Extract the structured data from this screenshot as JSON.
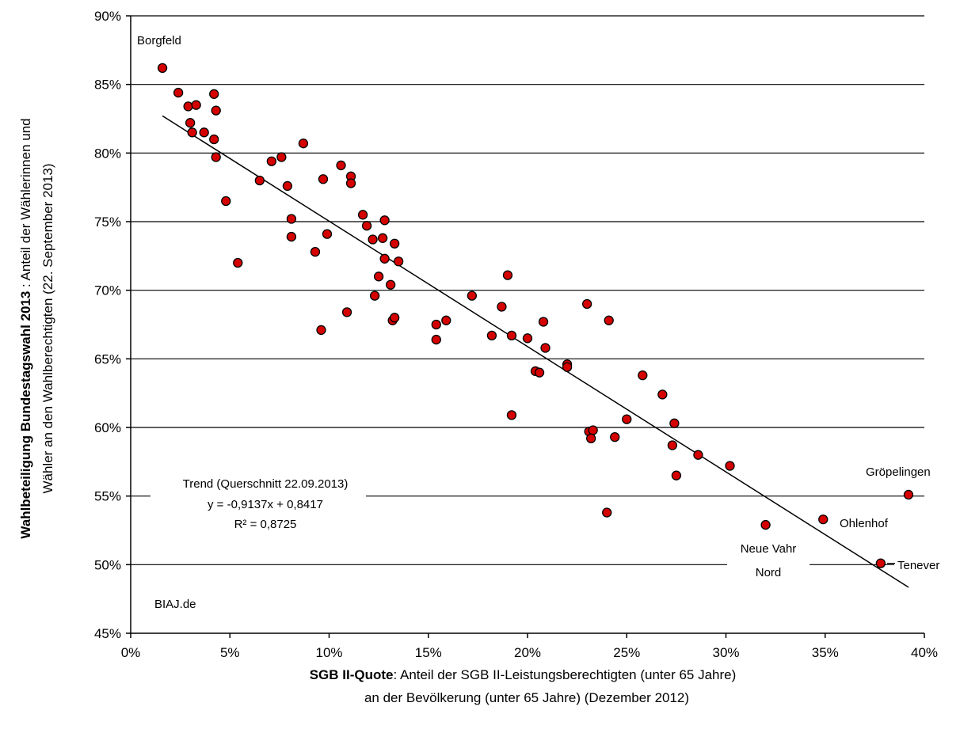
{
  "chart_data": {
    "type": "scatter",
    "xlim": [
      0,
      0.4
    ],
    "ylim": [
      0.45,
      0.9
    ],
    "x_ticks": [
      0,
      0.05,
      0.1,
      0.15,
      0.2,
      0.25,
      0.3,
      0.35,
      0.4
    ],
    "x_tick_labels": [
      "0%",
      "5%",
      "10%",
      "15%",
      "20%",
      "25%",
      "30%",
      "35%",
      "40%"
    ],
    "y_ticks": [
      0.45,
      0.5,
      0.55,
      0.6,
      0.65,
      0.7,
      0.75,
      0.8,
      0.85,
      0.9
    ],
    "y_tick_labels": [
      "45%",
      "50%",
      "55%",
      "60%",
      "65%",
      "70%",
      "75%",
      "80%",
      "85%",
      "90%"
    ],
    "grid": "horizontal",
    "xlabel": {
      "bold": "SGB II-Quote",
      "rest": ": Anteil der SGB II-Leistungsberechtigten (unter 65 Jahre)",
      "line2": "an der Bevölkerung (unter 65 Jahre) (Dezember 2012)"
    },
    "ylabel": {
      "bold": "Wahlbeteiligung Bundestagswahl 2013",
      "rest": " : Anteil der Wählerinnen und",
      "line2": "Wähler an den Wahlberechtigten (22. September 2013)"
    },
    "trend": {
      "slope": -0.9137,
      "intercept": 0.8417,
      "x_range": [
        0.016,
        0.392
      ],
      "label_lines": [
        "Trend (Querschnitt 22.09.2013)",
        "y = -0,9137x + 0,8417",
        "R² = 0,8725"
      ]
    },
    "source": "BIAJ.de",
    "labels": [
      {
        "text": "Borgfeld",
        "x": 0.016,
        "y": 0.862
      },
      {
        "text": "Gröpelingen",
        "x": 0.392,
        "y": 0.551
      },
      {
        "text": "Ohlenhof",
        "x": 0.349,
        "y": 0.533
      },
      {
        "text": "Neue Vahr",
        "x": 0.32,
        "y": 0.529
      },
      {
        "text": "Nord",
        "x": 0.32,
        "y": 0.529
      },
      {
        "text": "Tenever",
        "x": 0.378,
        "y": 0.501
      }
    ],
    "points": [
      {
        "x": 0.016,
        "y": 0.862
      },
      {
        "x": 0.024,
        "y": 0.844
      },
      {
        "x": 0.029,
        "y": 0.834
      },
      {
        "x": 0.033,
        "y": 0.835
      },
      {
        "x": 0.03,
        "y": 0.822
      },
      {
        "x": 0.031,
        "y": 0.815
      },
      {
        "x": 0.037,
        "y": 0.815
      },
      {
        "x": 0.042,
        "y": 0.843
      },
      {
        "x": 0.043,
        "y": 0.831
      },
      {
        "x": 0.042,
        "y": 0.81
      },
      {
        "x": 0.043,
        "y": 0.797
      },
      {
        "x": 0.048,
        "y": 0.765
      },
      {
        "x": 0.054,
        "y": 0.72
      },
      {
        "x": 0.065,
        "y": 0.78
      },
      {
        "x": 0.071,
        "y": 0.794
      },
      {
        "x": 0.076,
        "y": 0.797
      },
      {
        "x": 0.079,
        "y": 0.776
      },
      {
        "x": 0.081,
        "y": 0.752
      },
      {
        "x": 0.081,
        "y": 0.739
      },
      {
        "x": 0.087,
        "y": 0.807
      },
      {
        "x": 0.093,
        "y": 0.728
      },
      {
        "x": 0.097,
        "y": 0.781
      },
      {
        "x": 0.099,
        "y": 0.741
      },
      {
        "x": 0.096,
        "y": 0.671
      },
      {
        "x": 0.106,
        "y": 0.791
      },
      {
        "x": 0.111,
        "y": 0.783
      },
      {
        "x": 0.111,
        "y": 0.778
      },
      {
        "x": 0.109,
        "y": 0.684
      },
      {
        "x": 0.117,
        "y": 0.755
      },
      {
        "x": 0.119,
        "y": 0.747
      },
      {
        "x": 0.122,
        "y": 0.737
      },
      {
        "x": 0.127,
        "y": 0.738
      },
      {
        "x": 0.128,
        "y": 0.751
      },
      {
        "x": 0.128,
        "y": 0.723
      },
      {
        "x": 0.125,
        "y": 0.71
      },
      {
        "x": 0.123,
        "y": 0.696
      },
      {
        "x": 0.131,
        "y": 0.704
      },
      {
        "x": 0.133,
        "y": 0.734
      },
      {
        "x": 0.135,
        "y": 0.721
      },
      {
        "x": 0.132,
        "y": 0.678
      },
      {
        "x": 0.133,
        "y": 0.68
      },
      {
        "x": 0.154,
        "y": 0.675
      },
      {
        "x": 0.154,
        "y": 0.664
      },
      {
        "x": 0.159,
        "y": 0.678
      },
      {
        "x": 0.172,
        "y": 0.696
      },
      {
        "x": 0.182,
        "y": 0.667
      },
      {
        "x": 0.187,
        "y": 0.688
      },
      {
        "x": 0.19,
        "y": 0.711
      },
      {
        "x": 0.192,
        "y": 0.667
      },
      {
        "x": 0.192,
        "y": 0.609
      },
      {
        "x": 0.2,
        "y": 0.665
      },
      {
        "x": 0.204,
        "y": 0.641
      },
      {
        "x": 0.206,
        "y": 0.64
      },
      {
        "x": 0.208,
        "y": 0.677
      },
      {
        "x": 0.209,
        "y": 0.658
      },
      {
        "x": 0.22,
        "y": 0.646
      },
      {
        "x": 0.22,
        "y": 0.644
      },
      {
        "x": 0.23,
        "y": 0.69
      },
      {
        "x": 0.231,
        "y": 0.597
      },
      {
        "x": 0.233,
        "y": 0.598
      },
      {
        "x": 0.232,
        "y": 0.592
      },
      {
        "x": 0.241,
        "y": 0.678
      },
      {
        "x": 0.24,
        "y": 0.538
      },
      {
        "x": 0.244,
        "y": 0.593
      },
      {
        "x": 0.25,
        "y": 0.606
      },
      {
        "x": 0.258,
        "y": 0.638
      },
      {
        "x": 0.268,
        "y": 0.624
      },
      {
        "x": 0.274,
        "y": 0.603
      },
      {
        "x": 0.273,
        "y": 0.587
      },
      {
        "x": 0.275,
        "y": 0.565
      },
      {
        "x": 0.286,
        "y": 0.58
      },
      {
        "x": 0.302,
        "y": 0.572
      },
      {
        "x": 0.32,
        "y": 0.529
      },
      {
        "x": 0.349,
        "y": 0.533
      },
      {
        "x": 0.378,
        "y": 0.501
      },
      {
        "x": 0.392,
        "y": 0.551
      }
    ]
  }
}
